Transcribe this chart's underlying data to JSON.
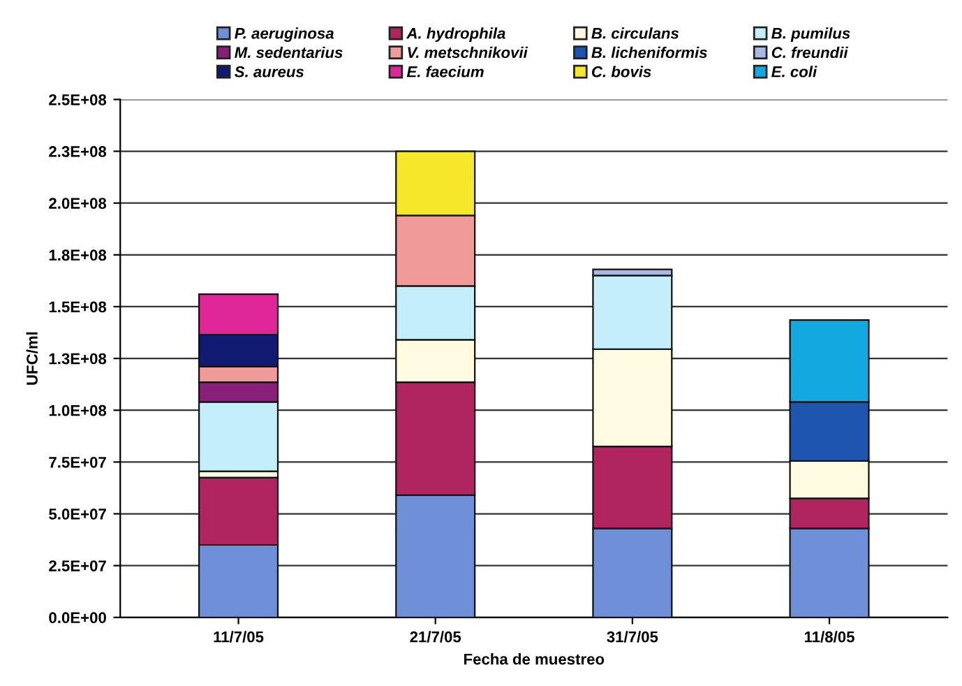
{
  "chart_data": {
    "type": "bar",
    "stacked": true,
    "xlabel": "Fecha de muestreo",
    "ylabel": "UFC/ml",
    "categories": [
      "11/7/05",
      "21/7/05",
      "31/7/05",
      "11/8/05"
    ],
    "series": [
      {
        "name": "P. aeruginosa",
        "color": "#6f8fd8",
        "values": [
          35000000,
          59000000,
          43000000,
          43000000
        ]
      },
      {
        "name": "A. hydrophila",
        "color": "#b0245f",
        "values": [
          32500000,
          54500000,
          39500000,
          14500000
        ]
      },
      {
        "name": "B. circulans",
        "color": "#fffbe0",
        "values": [
          3000000,
          20500000,
          47000000,
          18000000
        ]
      },
      {
        "name": "B. pumilus",
        "color": "#c4eefa",
        "values": [
          33500000,
          26000000,
          35500000,
          0
        ]
      },
      {
        "name": "M. sedentarius",
        "color": "#8a1f7a",
        "values": [
          9500000,
          0,
          0,
          0
        ]
      },
      {
        "name": "V. metschnikovii",
        "color": "#f09a9a",
        "values": [
          7500000,
          34000000,
          0,
          0
        ]
      },
      {
        "name": "B. licheniformis",
        "color": "#1e55b0",
        "values": [
          0,
          0,
          0,
          28500000
        ]
      },
      {
        "name": "C. freundii",
        "color": "#a9b9e6",
        "values": [
          0,
          0,
          3000000,
          0
        ]
      },
      {
        "name": "S. aureus",
        "color": "#101a70",
        "values": [
          15500000,
          0,
          0,
          0
        ]
      },
      {
        "name": "E. faecium",
        "color": "#e0279a",
        "values": [
          19500000,
          0,
          0,
          0
        ]
      },
      {
        "name": "C. bovis",
        "color": "#f5e82a",
        "values": [
          0,
          31000000,
          0,
          0
        ]
      },
      {
        "name": "E. coli",
        "color": "#14a8e0",
        "values": [
          0,
          0,
          0,
          39500000
        ]
      }
    ],
    "ylim": [
      0,
      250000000
    ],
    "yticks": [
      {
        "value": 0,
        "label": "0.0E+00"
      },
      {
        "value": 25000000,
        "label": "2.5E+07"
      },
      {
        "value": 50000000,
        "label": "5.0E+07"
      },
      {
        "value": 75000000,
        "label": "7.5E+07"
      },
      {
        "value": 100000000,
        "label": "1.0E+08"
      },
      {
        "value": 125000000,
        "label": "1.3E+08"
      },
      {
        "value": 150000000,
        "label": "1.5E+08"
      },
      {
        "value": 175000000,
        "label": "1.8E+08"
      },
      {
        "value": 200000000,
        "label": "2.0E+08"
      },
      {
        "value": 225000000,
        "label": "2.3E+08"
      },
      {
        "value": 250000000,
        "label": "2.5E+08"
      }
    ],
    "grid": "y",
    "legend": "top"
  }
}
